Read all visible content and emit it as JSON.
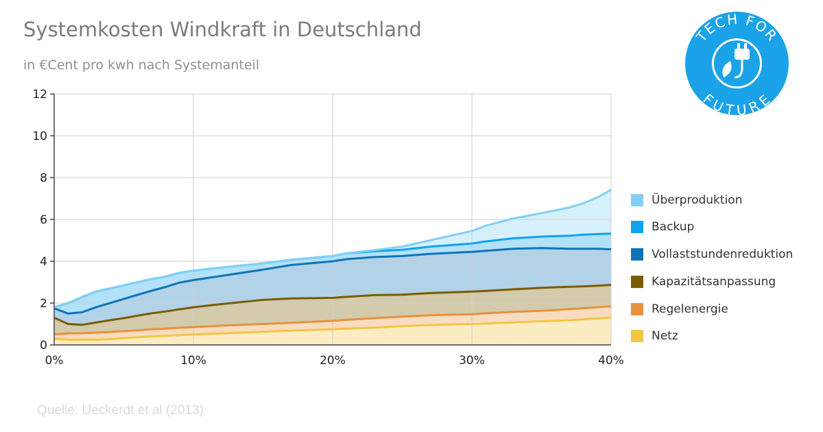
{
  "title": "Systemkosten Windkraft in Deutschland",
  "subtitle": "in €Cent pro kwh nach Systemanteil",
  "source": "Quelle: Ueckerdt et al (2013)",
  "logo": {
    "text_top": "TECH FOR",
    "text_bottom": "FUTURE",
    "color": "#1aa3e8",
    "icon": "plug-leaf-icon"
  },
  "chart_data": {
    "type": "area",
    "stacked": true,
    "x": [
      0,
      1,
      2,
      3,
      4,
      5,
      6,
      7,
      8,
      9,
      10,
      12,
      15,
      17,
      20,
      21,
      23,
      25,
      27,
      30,
      31,
      33,
      35,
      37,
      38,
      39,
      40
    ],
    "x_unit": "%",
    "xlim": [
      0,
      40
    ],
    "xticks": [
      "0%",
      "10%",
      "20%",
      "30%",
      "40%"
    ],
    "ylim": [
      0,
      12
    ],
    "yticks": [
      "0",
      "2",
      "4",
      "6",
      "8",
      "10",
      "12"
    ],
    "grid": true,
    "legend_position": "right",
    "series": [
      {
        "name": "Netz",
        "color": "#f4c542",
        "values": [
          0.3,
          0.25,
          0.25,
          0.25,
          0.28,
          0.32,
          0.37,
          0.41,
          0.44,
          0.47,
          0.5,
          0.55,
          0.63,
          0.68,
          0.75,
          0.78,
          0.83,
          0.9,
          0.95,
          1.0,
          1.02,
          1.08,
          1.13,
          1.18,
          1.22,
          1.27,
          1.3
        ]
      },
      {
        "name": "Regelenergie",
        "color": "#e8913c",
        "values": [
          0.2,
          0.3,
          0.31,
          0.34,
          0.34,
          0.34,
          0.33,
          0.34,
          0.34,
          0.35,
          0.35,
          0.37,
          0.37,
          0.38,
          0.4,
          0.42,
          0.45,
          0.45,
          0.47,
          0.47,
          0.49,
          0.5,
          0.5,
          0.53,
          0.53,
          0.53,
          0.55
        ]
      },
      {
        "name": "Kapazitätsanpassung",
        "color": "#7a5c00",
        "values": [
          0.8,
          0.45,
          0.4,
          0.48,
          0.56,
          0.62,
          0.7,
          0.76,
          0.82,
          0.88,
          0.95,
          1.03,
          1.15,
          1.16,
          1.1,
          1.1,
          1.1,
          1.05,
          1.06,
          1.08,
          1.07,
          1.08,
          1.1,
          1.07,
          1.05,
          1.03,
          1.02
        ]
      },
      {
        "name": "Vollaststundenreduktion",
        "color": "#0f74b5",
        "values": [
          0.45,
          0.5,
          0.6,
          0.73,
          0.82,
          0.92,
          1.0,
          1.08,
          1.17,
          1.28,
          1.3,
          1.35,
          1.45,
          1.6,
          1.75,
          1.8,
          1.82,
          1.85,
          1.87,
          1.9,
          1.92,
          1.94,
          1.9,
          1.82,
          1.8,
          1.77,
          1.7
        ]
      },
      {
        "name": "Backup",
        "color": "#10a2ec",
        "values": [
          0.05,
          0.5,
          0.73,
          0.75,
          0.7,
          0.65,
          0.6,
          0.56,
          0.5,
          0.47,
          0.45,
          0.4,
          0.3,
          0.25,
          0.25,
          0.28,
          0.28,
          0.3,
          0.35,
          0.4,
          0.45,
          0.5,
          0.55,
          0.62,
          0.67,
          0.7,
          0.75
        ]
      },
      {
        "name": "Überproduktion",
        "color": "#7fd0f8",
        "values": [
          0.0,
          0.0,
          0.0,
          0.0,
          0.0,
          0.0,
          0.0,
          0.0,
          0.0,
          0.0,
          0.0,
          0.0,
          0.0,
          0.0,
          0.0,
          0.0,
          0.05,
          0.15,
          0.3,
          0.6,
          0.75,
          0.95,
          1.12,
          1.35,
          1.5,
          1.75,
          2.1
        ]
      }
    ]
  }
}
